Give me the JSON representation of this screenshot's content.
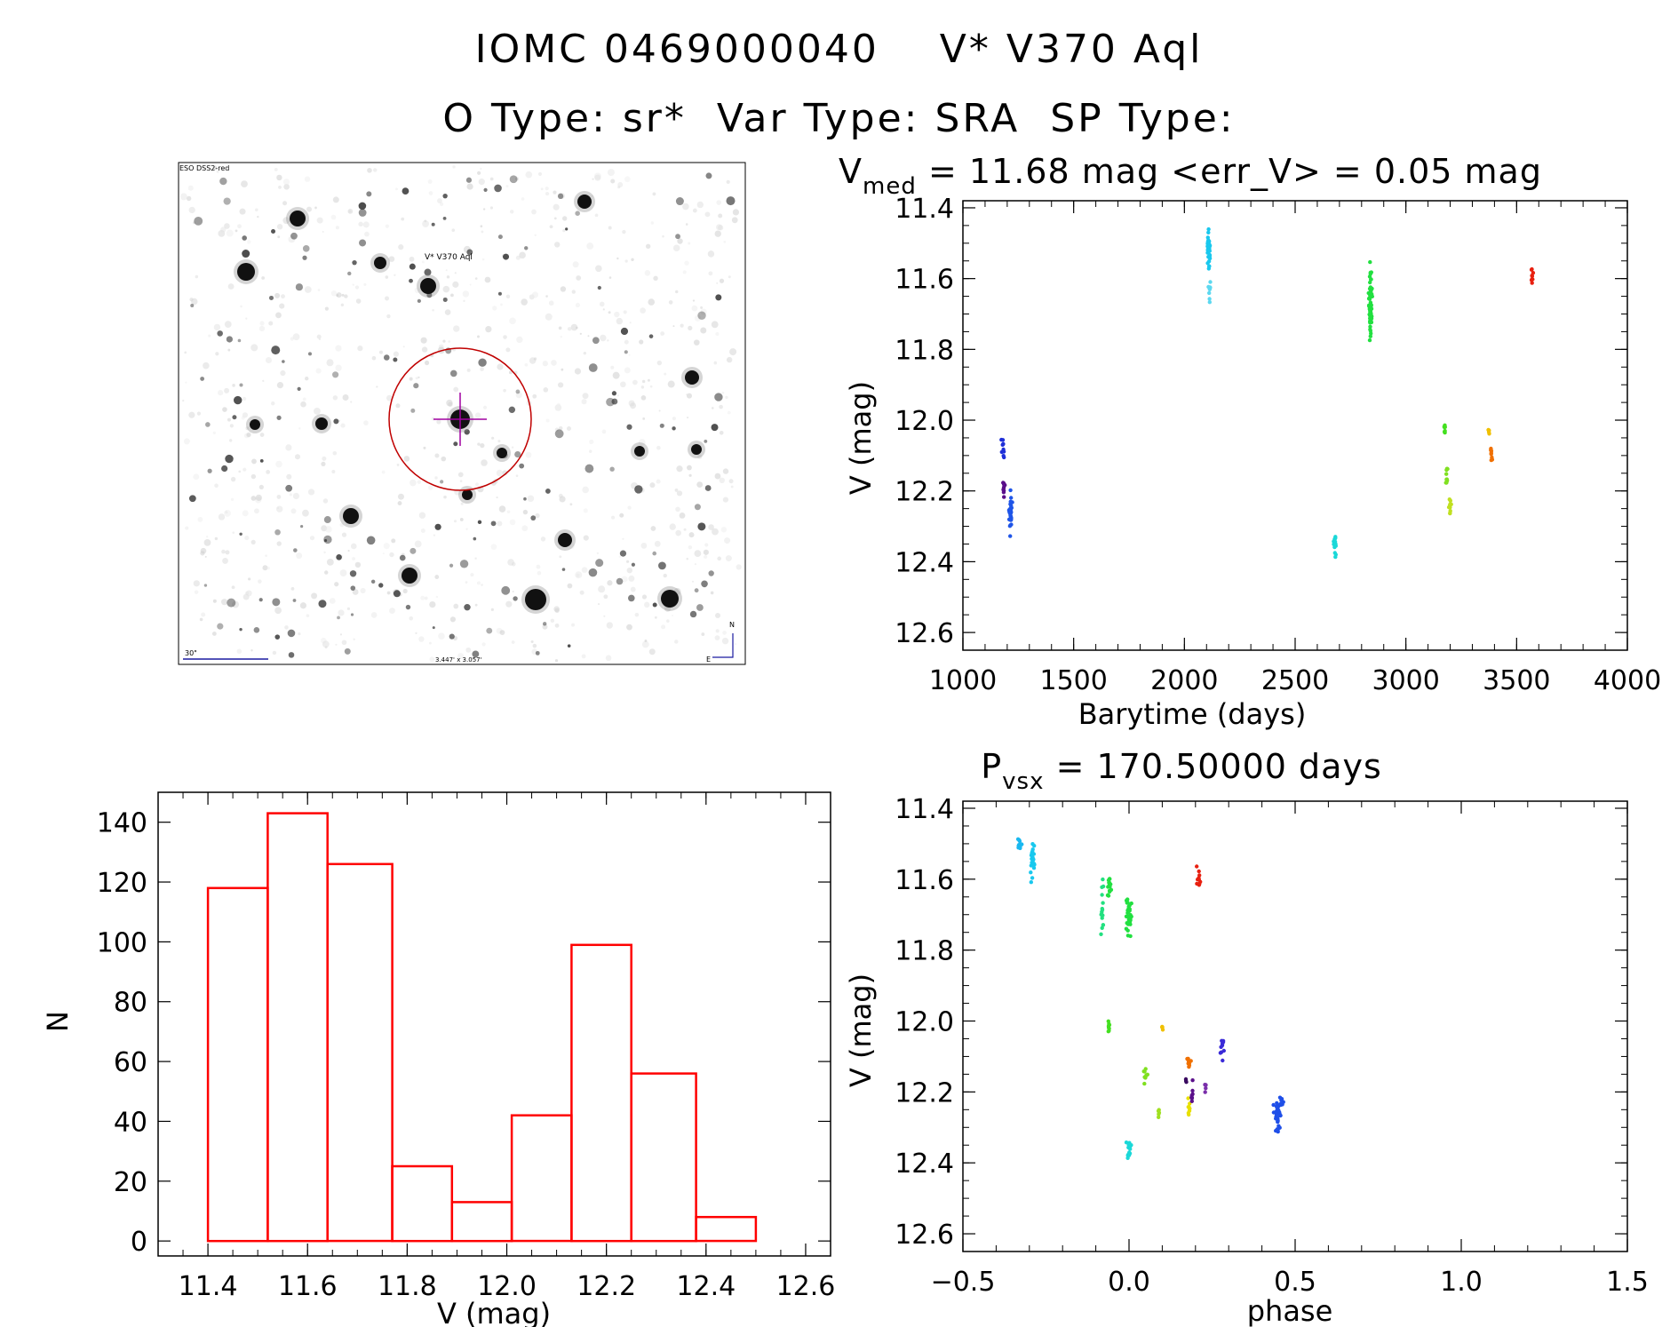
{
  "header": {
    "line1": "IOMC 0469000040    V* V370 Aql",
    "line2": "O Type: sr*  Var Type: SRA  SP Type:"
  },
  "finder_chart": {
    "survey_label": "ESO DSS2-red",
    "target_label": "V* V370 Aql",
    "scale_label": "30\"",
    "size_label": "3.447' x 3.057'",
    "north_label": "N",
    "east_label": "E"
  },
  "chart_data": [
    {
      "type": "scatter",
      "id": "lightcurve",
      "title": "V_med = 11.68 mag <err_V> = 0.05 mag",
      "title_parts": {
        "main": "V",
        "sub": "med",
        "rest": " = 11.68 mag <err_V> = 0.05 mag"
      },
      "xlabel": "Barytime (days)",
      "ylabel": "V (mag)",
      "xlim": [
        1000,
        4000
      ],
      "ylim": [
        12.65,
        11.38
      ],
      "y_inverted": true,
      "xticks": [
        1000,
        1500,
        2000,
        2500,
        3000,
        3500,
        4000
      ],
      "yticks": [
        11.4,
        11.6,
        11.8,
        12.0,
        12.2,
        12.4,
        12.6
      ],
      "clusters": [
        {
          "x": 1180,
          "y": 12.08,
          "dx": 8,
          "dy": 0.06,
          "n": 10,
          "color": "#1f2fd8"
        },
        {
          "x": 1185,
          "y": 12.19,
          "dx": 8,
          "dy": 0.04,
          "n": 10,
          "color": "#5a0f8a"
        },
        {
          "x": 1215,
          "y": 12.26,
          "dx": 10,
          "dy": 0.08,
          "n": 35,
          "color": "#1f55e8"
        },
        {
          "x": 2110,
          "y": 11.52,
          "dx": 8,
          "dy": 0.07,
          "n": 35,
          "color": "#19c8ee"
        },
        {
          "x": 2113,
          "y": 11.64,
          "dx": 6,
          "dy": 0.06,
          "n": 10,
          "color": "#5cd8f0"
        },
        {
          "x": 2680,
          "y": 12.36,
          "dx": 8,
          "dy": 0.05,
          "n": 15,
          "color": "#1bd8d8"
        },
        {
          "x": 2840,
          "y": 11.68,
          "dx": 10,
          "dy": 0.15,
          "n": 60,
          "color": "#22e040"
        },
        {
          "x": 3175,
          "y": 12.02,
          "dx": 5,
          "dy": 0.03,
          "n": 8,
          "color": "#44e020"
        },
        {
          "x": 3185,
          "y": 12.16,
          "dx": 6,
          "dy": 0.05,
          "n": 10,
          "color": "#80e020"
        },
        {
          "x": 3200,
          "y": 12.24,
          "dx": 8,
          "dy": 0.04,
          "n": 12,
          "color": "#c0e020"
        },
        {
          "x": 3375,
          "y": 12.03,
          "dx": 4,
          "dy": 0.02,
          "n": 5,
          "color": "#f0c000"
        },
        {
          "x": 3385,
          "y": 12.1,
          "dx": 6,
          "dy": 0.03,
          "n": 8,
          "color": "#f07000"
        },
        {
          "x": 3570,
          "y": 11.6,
          "dx": 6,
          "dy": 0.05,
          "n": 10,
          "color": "#e82010"
        }
      ]
    },
    {
      "type": "scatter",
      "id": "phased",
      "title": "P_vsx = 170.50000 days",
      "title_parts": {
        "main": "P",
        "sub": "vsx",
        "rest": " = 170.50000 days"
      },
      "xlabel": "phase",
      "ylabel": "V (mag)",
      "xlim": [
        -0.5,
        1.5
      ],
      "ylim": [
        12.65,
        11.38
      ],
      "y_inverted": true,
      "xticks": [
        -0.5,
        0.0,
        0.5,
        1.0,
        1.5
      ],
      "ytick_values": [
        11.4,
        11.6,
        11.8,
        12.0,
        12.2,
        12.4,
        12.6
      ],
      "clusters": [
        {
          "x": -0.33,
          "y": 11.5,
          "dx": 0.01,
          "dy": 0.03,
          "n": 15,
          "color": "#19b8f0"
        },
        {
          "x": -0.29,
          "y": 11.55,
          "dx": 0.01,
          "dy": 0.08,
          "n": 25,
          "color": "#19c8ee"
        },
        {
          "x": -0.08,
          "y": 11.68,
          "dx": 0.005,
          "dy": 0.12,
          "n": 15,
          "color": "#22e080"
        },
        {
          "x": -0.06,
          "y": 11.62,
          "dx": 0.01,
          "dy": 0.05,
          "n": 15,
          "color": "#22e040"
        },
        {
          "x": 0.0,
          "y": 11.7,
          "dx": 0.012,
          "dy": 0.08,
          "n": 35,
          "color": "#22e040"
        },
        {
          "x": -0.06,
          "y": 12.02,
          "dx": 0.005,
          "dy": 0.03,
          "n": 8,
          "color": "#44e020"
        },
        {
          "x": 0.05,
          "y": 12.16,
          "dx": 0.01,
          "dy": 0.04,
          "n": 10,
          "color": "#80e020"
        },
        {
          "x": 0.0,
          "y": 12.36,
          "dx": 0.012,
          "dy": 0.05,
          "n": 15,
          "color": "#1bd8d8"
        },
        {
          "x": 0.09,
          "y": 12.26,
          "dx": 0.003,
          "dy": 0.02,
          "n": 5,
          "color": "#a0e020"
        },
        {
          "x": 0.17,
          "y": 12.17,
          "dx": 0.003,
          "dy": 0.01,
          "n": 3,
          "color": "#3a0a60"
        },
        {
          "x": 0.18,
          "y": 12.24,
          "dx": 0.005,
          "dy": 0.03,
          "n": 8,
          "color": "#e8e000"
        },
        {
          "x": 0.19,
          "y": 12.2,
          "dx": 0.005,
          "dy": 0.05,
          "n": 8,
          "color": "#5a0f8a"
        },
        {
          "x": 0.18,
          "y": 12.11,
          "dx": 0.008,
          "dy": 0.03,
          "n": 10,
          "color": "#f07000"
        },
        {
          "x": 0.1,
          "y": 12.02,
          "dx": 0.003,
          "dy": 0.02,
          "n": 4,
          "color": "#f0c000"
        },
        {
          "x": 0.23,
          "y": 12.19,
          "dx": 0.003,
          "dy": 0.02,
          "n": 4,
          "color": "#7a2faa"
        },
        {
          "x": 0.21,
          "y": 11.6,
          "dx": 0.008,
          "dy": 0.05,
          "n": 10,
          "color": "#e82010"
        },
        {
          "x": 0.28,
          "y": 12.08,
          "dx": 0.02,
          "dy": 0.04,
          "n": 10,
          "color": "#3a2ad8"
        },
        {
          "x": 0.45,
          "y": 12.26,
          "dx": 0.02,
          "dy": 0.07,
          "n": 40,
          "color": "#1f4fe8"
        }
      ]
    },
    {
      "type": "bar",
      "id": "histogram",
      "title": "",
      "xlabel": "V (mag)",
      "ylabel": "N",
      "xlim": [
        11.3,
        12.65
      ],
      "ylim": [
        -5,
        150
      ],
      "xticks": [
        11.4,
        11.6,
        11.8,
        12.0,
        12.2,
        12.4,
        12.6
      ],
      "yticks": [
        0,
        20,
        40,
        60,
        80,
        100,
        120,
        140
      ],
      "bin_edges": [
        11.4,
        11.52,
        11.64,
        11.77,
        11.89,
        12.01,
        12.13,
        12.25,
        12.38,
        12.5
      ],
      "values": [
        118,
        143,
        126,
        25,
        13,
        42,
        99,
        56,
        8
      ],
      "bar_color": "#ff0000"
    }
  ]
}
